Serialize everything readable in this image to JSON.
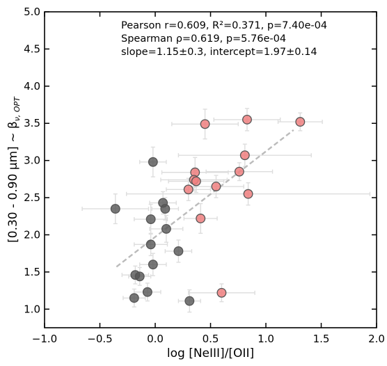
{
  "chart_data": {
    "type": "scatter",
    "title": "",
    "xlabel": "log [NeIII]/[OII]",
    "ylabel": "[0.30 - 0.90 μm] ~ β",
    "ylabel_sub": "ν, OPT",
    "xlim": [
      -1.0,
      2.0
    ],
    "ylim": [
      0.75,
      5.0
    ],
    "xticks": [
      -1.0,
      -0.5,
      0.0,
      0.5,
      1.0,
      1.5,
      2.0
    ],
    "xtick_labels": [
      "−1.0",
      "−0.5",
      "0.0",
      "0.5",
      "1.0",
      "1.5",
      "2.0"
    ],
    "yticks": [
      1.0,
      1.5,
      2.0,
      2.5,
      3.0,
      3.5,
      4.0,
      4.5,
      5.0
    ],
    "ytick_labels": [
      "1.0",
      "1.5",
      "2.0",
      "2.5",
      "3.0",
      "3.5",
      "4.0",
      "4.5",
      "5.0"
    ],
    "grid": false,
    "annotations": [
      "Pearson r=0.609, R²=0.371, p=7.40e-04",
      "Spearman ρ=0.619, p=5.76e-04",
      "slope=1.15±0.3, intercept=1.97±0.14"
    ],
    "fit_line": {
      "x": [
        -0.35,
        1.25
      ],
      "y": [
        1.57,
        3.41
      ],
      "style": "dashed",
      "color": "#bbbbbb"
    },
    "colors": {
      "grey": "#555555",
      "red": "#f08080",
      "edge": "#555555",
      "errorbar": "#dddddd"
    },
    "series": [
      {
        "color": "grey",
        "points": [
          {
            "x": -0.36,
            "y": 2.35,
            "xerr": 0.3,
            "yerr": 0.2
          },
          {
            "x": -0.02,
            "y": 2.98,
            "xerr": 0.12,
            "yerr": 0.2
          },
          {
            "x": -0.04,
            "y": 2.21,
            "xerr": 0.15,
            "yerr": 0.2
          },
          {
            "x": 0.07,
            "y": 2.43,
            "xerr": 0.12,
            "yerr": 0.15
          },
          {
            "x": 0.09,
            "y": 2.35,
            "xerr": 0.12,
            "yerr": 0.15
          },
          {
            "x": 0.1,
            "y": 2.08,
            "xerr": 0.15,
            "yerr": 0.18
          },
          {
            "x": -0.04,
            "y": 1.87,
            "xerr": 0.15,
            "yerr": 0.15
          },
          {
            "x": 0.21,
            "y": 1.78,
            "xerr": 0.12,
            "yerr": 0.15
          },
          {
            "x": -0.02,
            "y": 1.6,
            "xerr": 0.12,
            "yerr": 0.15
          },
          {
            "x": -0.18,
            "y": 1.46,
            "xerr": 0.12,
            "yerr": 0.12
          },
          {
            "x": -0.14,
            "y": 1.44,
            "xerr": 0.1,
            "yerr": 0.12
          },
          {
            "x": -0.07,
            "y": 1.23,
            "xerr": 0.12,
            "yerr": 0.12
          },
          {
            "x": -0.19,
            "y": 1.15,
            "xerr": 0.1,
            "yerr": 0.12
          },
          {
            "x": 0.31,
            "y": 1.11,
            "xerr": 0.1,
            "yerr": 0.15
          }
        ]
      },
      {
        "color": "red",
        "points": [
          {
            "x": 0.45,
            "y": 3.49,
            "xerr": 0.3,
            "yerr": 0.2
          },
          {
            "x": 0.83,
            "y": 3.55,
            "xerr": 0.3,
            "yerr": 0.15
          },
          {
            "x": 1.31,
            "y": 3.52,
            "xerr": 0.2,
            "yerr": 0.12
          },
          {
            "x": 0.81,
            "y": 3.07,
            "xerr": 0.6,
            "yerr": 0.15
          },
          {
            "x": 0.36,
            "y": 2.84,
            "xerr": 0.3,
            "yerr": 0.2
          },
          {
            "x": 0.76,
            "y": 2.85,
            "xerr": 0.3,
            "yerr": 0.12
          },
          {
            "x": 0.35,
            "y": 2.74,
            "xerr": 0.3,
            "yerr": 0.15
          },
          {
            "x": 0.37,
            "y": 2.72,
            "xerr": 0.25,
            "yerr": 0.15
          },
          {
            "x": 0.3,
            "y": 2.61,
            "xerr": 0.2,
            "yerr": 0.15
          },
          {
            "x": 0.55,
            "y": 2.65,
            "xerr": 0.25,
            "yerr": 0.15
          },
          {
            "x": 0.84,
            "y": 2.55,
            "xerr": 1.1,
            "yerr": 0.15
          },
          {
            "x": 0.41,
            "y": 2.22,
            "xerr": 0.15,
            "yerr": 0.2
          },
          {
            "x": 0.6,
            "y": 1.22,
            "xerr": 0.3,
            "yerr": 0.12
          }
        ]
      }
    ]
  }
}
